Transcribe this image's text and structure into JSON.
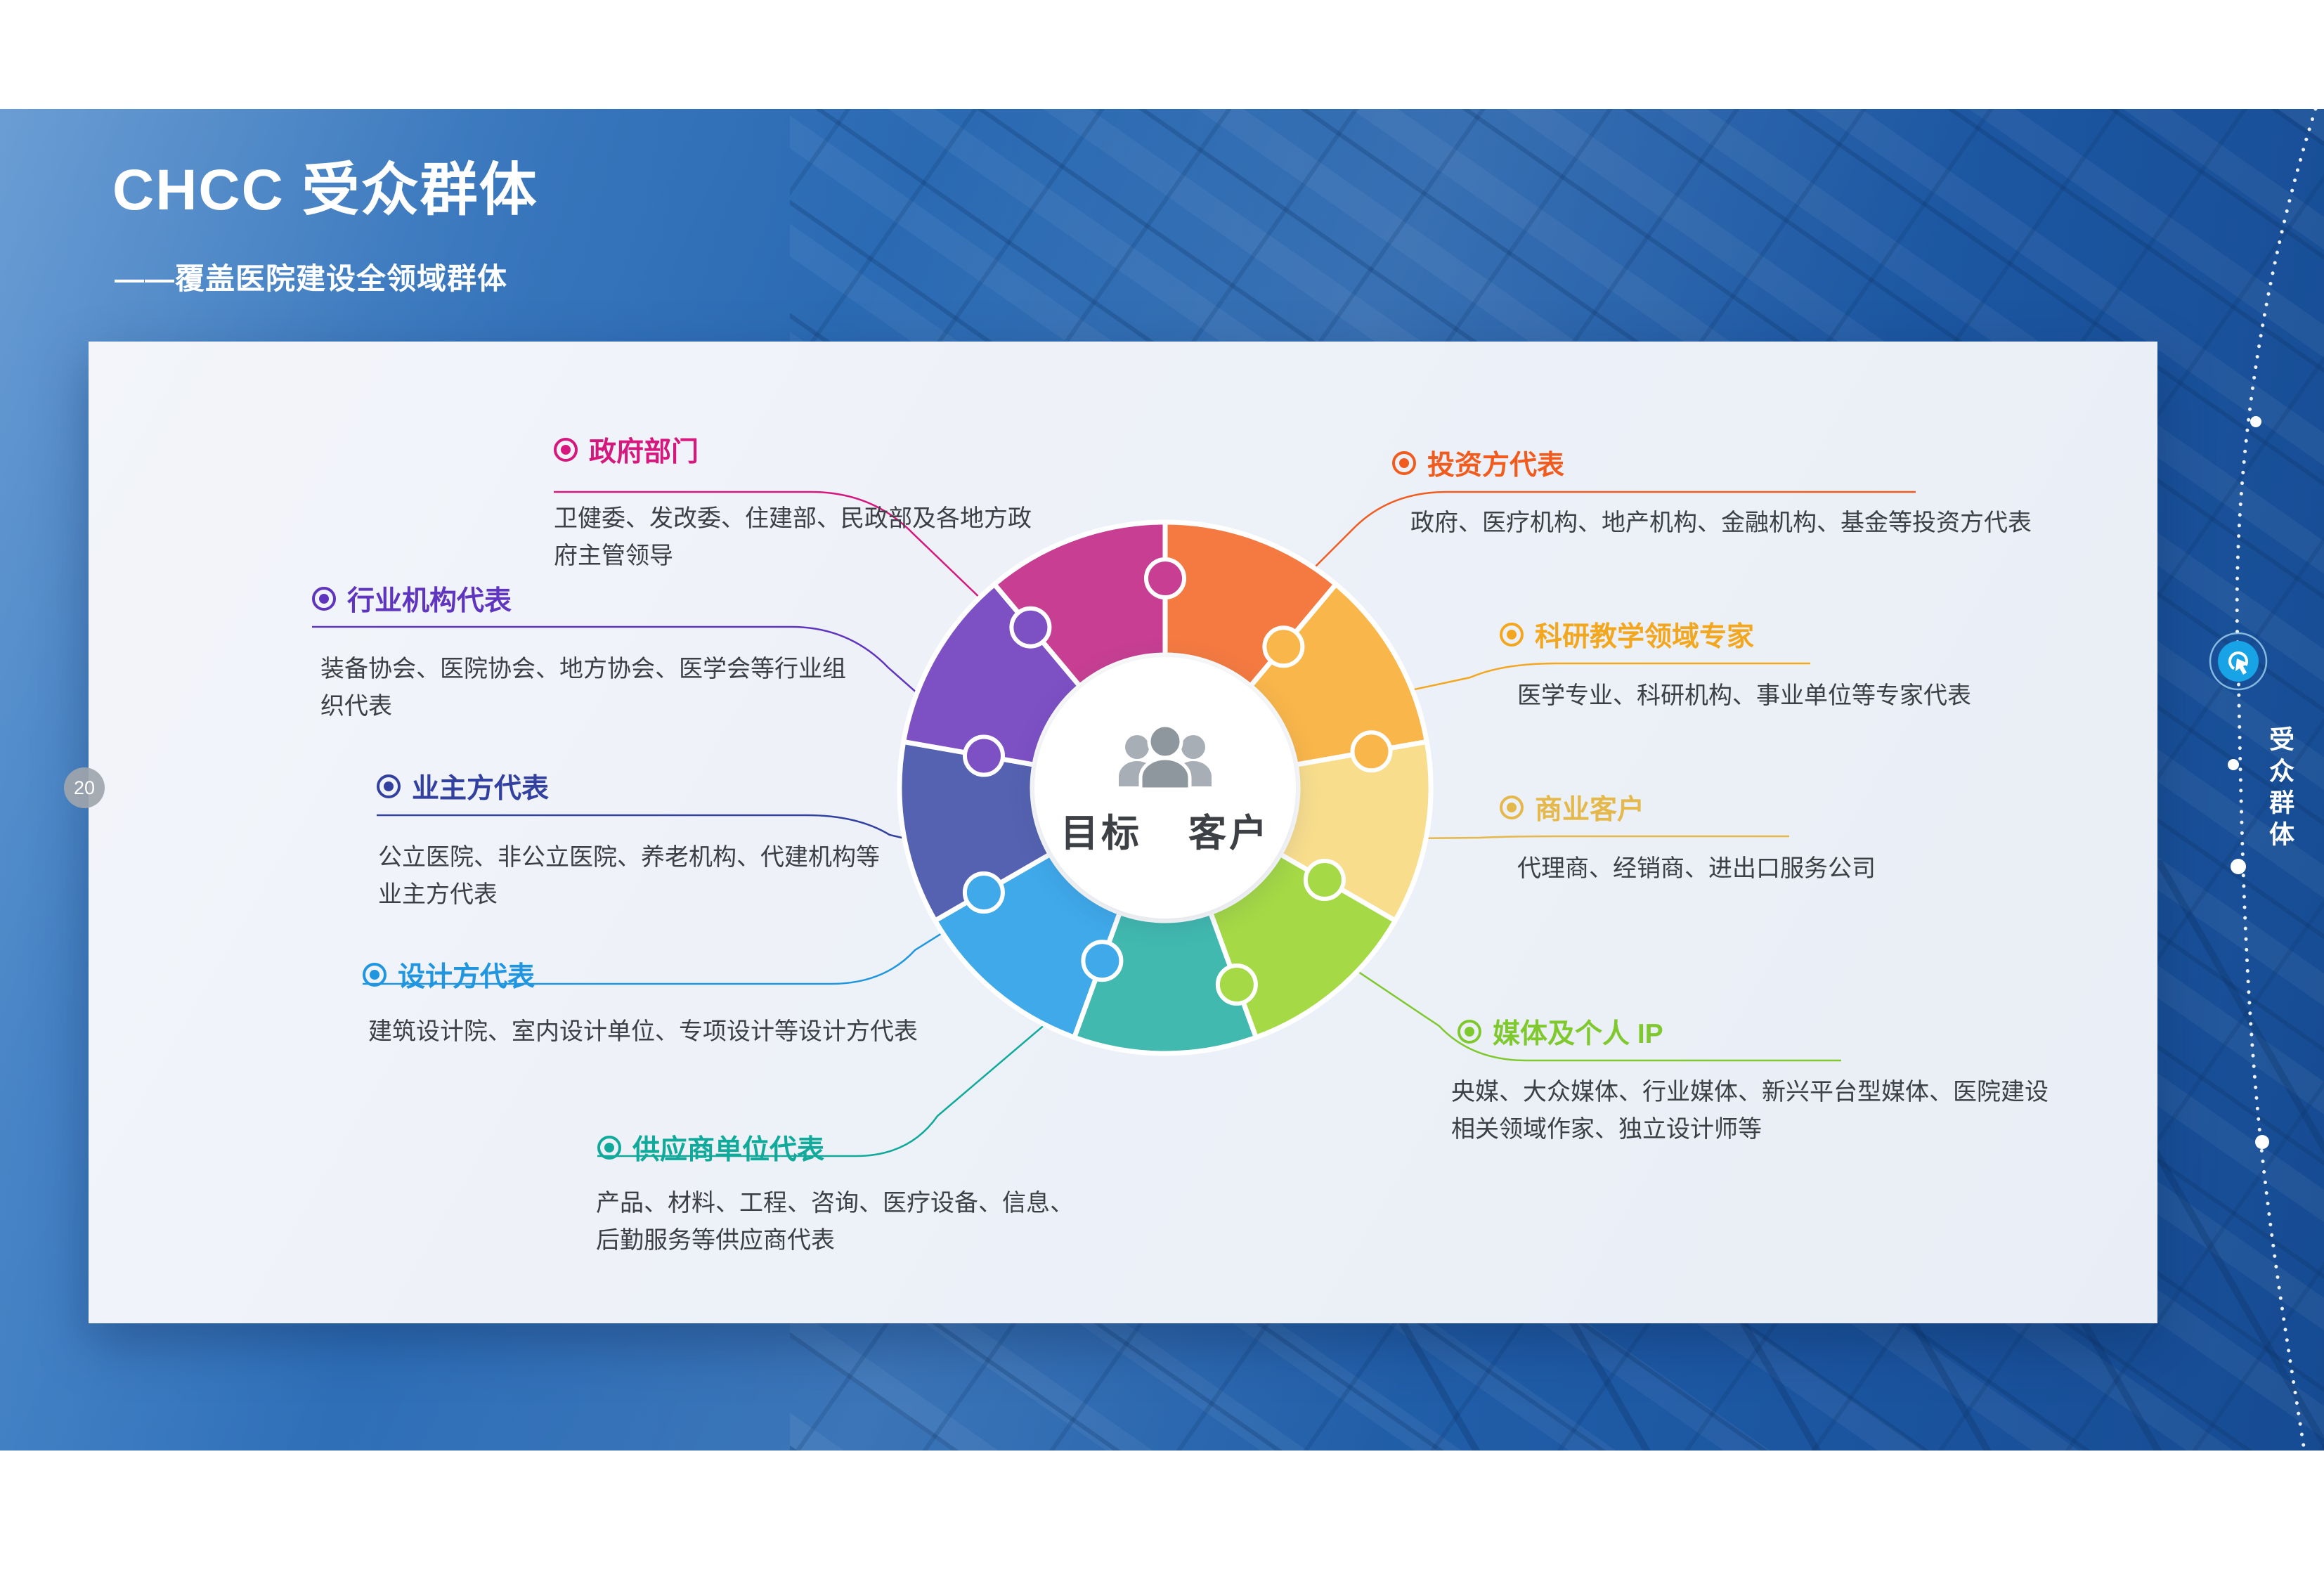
{
  "header": {
    "title": "CHCC 受众群体",
    "subtitle": "——覆盖医院建设全领域群体"
  },
  "page_number": "20",
  "side_panel": {
    "tab_label": "受众群体",
    "badge_icon": "cursor-click-icon",
    "badge_color": "#17a3e6"
  },
  "center_hub": {
    "icon": "people-icon",
    "title_left": "目标",
    "title_right": "客户"
  },
  "categories": [
    {
      "id": "government",
      "label": "政府部门",
      "desc": "卫健委、发改委、住建部、民政部及各地方政府主管领导",
      "color": "#d6187e",
      "segment_color": "#c73e92"
    },
    {
      "id": "industry-orgs",
      "label": "行业机构代表",
      "desc": "装备协会、医院协会、地方协会、医学会等行业组织代表",
      "color": "#5f35c0",
      "segment_color": "#7d50c4"
    },
    {
      "id": "owners",
      "label": "业主方代表",
      "desc": "公立医院、非公立医院、养老机构、代建机构等业主方代表",
      "color": "#32419f",
      "segment_color": "#5562b1"
    },
    {
      "id": "designers",
      "label": "设计方代表",
      "desc": "建筑设计院、室内设计单位、专项设计等设计方代表",
      "color": "#2196e0",
      "segment_color": "#3fa9ea"
    },
    {
      "id": "suppliers",
      "label": "供应商单位代表",
      "desc": "产品、材料、工程、咨询、医疗设备、信息、后勤服务等供应商代表",
      "color": "#10a99a",
      "segment_color": "#41b9af"
    },
    {
      "id": "investors",
      "label": "投资方代表",
      "desc": "政府、医疗机构、地产机构、金融机构、基金等投资方代表",
      "color": "#f15c1e",
      "segment_color": "#f47a41"
    },
    {
      "id": "experts",
      "label": "科研教学领域专家",
      "desc": "医学专业、科研机构、事业单位等专家代表",
      "color": "#f2a71f",
      "segment_color": "#f9b64a"
    },
    {
      "id": "commercial",
      "label": "商业客户",
      "desc": "代理商、经销商、进出口服务公司",
      "color": "#e4b84a",
      "segment_color": "#f8dd8d"
    },
    {
      "id": "media",
      "label": "媒体及个人 IP",
      "desc": "央媒、大众媒体、行业媒体、新兴平台型媒体、医院建设相关领域作家、独立设计师等",
      "color": "#7fc92e",
      "segment_color": "#a5d946"
    }
  ],
  "puzzle_order_clockwise_from_top": [
    "investors",
    "experts",
    "commercial",
    "media",
    "suppliers",
    "designers",
    "owners",
    "industry-orgs",
    "government"
  ]
}
